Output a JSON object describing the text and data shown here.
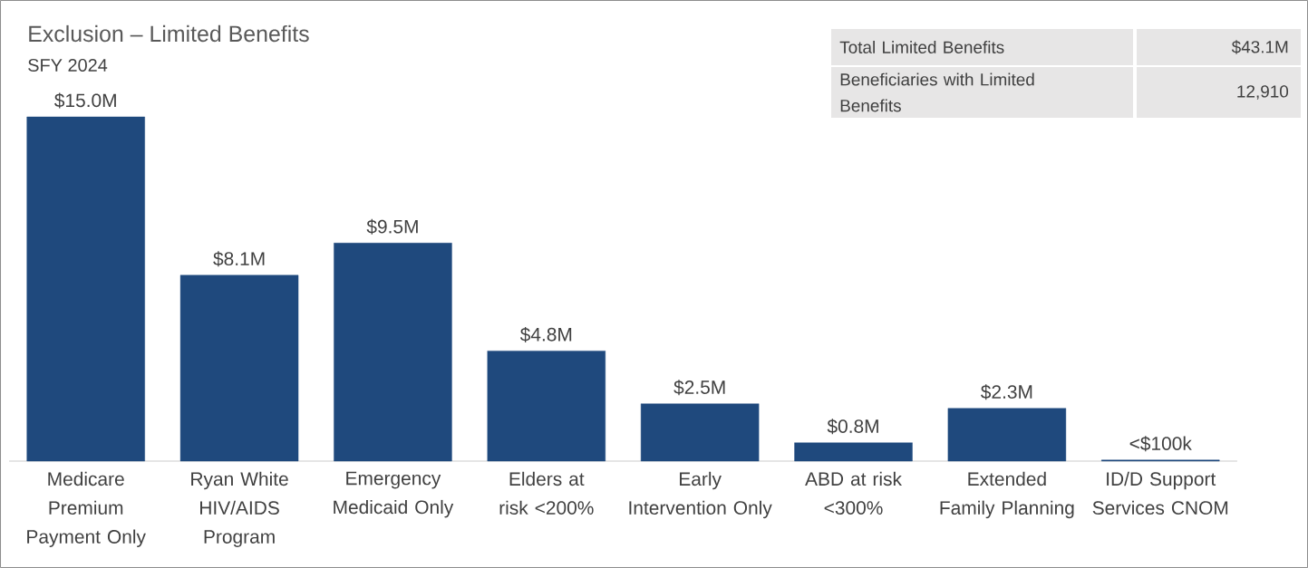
{
  "chart_data": {
    "type": "bar",
    "title": "Exclusion – Limited Benefits",
    "subtitle": "SFY 2024",
    "categories": [
      "Medicare Premium Payment Only",
      "Ryan White HIV/AIDS Program",
      "Emergency Medicaid Only",
      "Elders at risk <200%",
      "Early Intervention Only",
      "ABD at risk <300%",
      "Extended Family Planning",
      "ID/D Support Services CNOM"
    ],
    "values": [
      15.0,
      8.1,
      9.5,
      4.8,
      2.5,
      0.8,
      2.3,
      0.05
    ],
    "value_labels": [
      "$15.0M",
      "$8.1M",
      "$9.5M",
      "$4.8M",
      "$2.5M",
      "$0.8M",
      "$2.3M",
      "<$100k"
    ],
    "color": "#1f497d",
    "annotations": [
      "Total Limited Benefits",
      "$43.1M",
      "Beneficiaries with Limited Benefits",
      "12,910"
    ]
  }
}
